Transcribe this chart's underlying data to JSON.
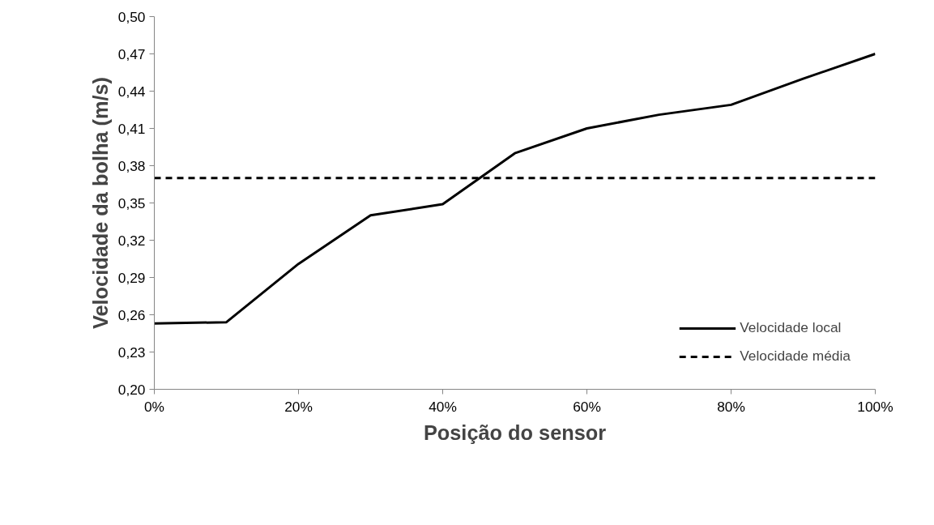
{
  "chart_data": {
    "type": "line",
    "xlabel": "Posição do sensor",
    "ylabel": "Velocidade da bolha (m/s)",
    "x": [
      0,
      10,
      20,
      30,
      40,
      50,
      60,
      70,
      80,
      90,
      100
    ],
    "series": [
      {
        "name": "Velocidade local",
        "color": "#000000",
        "values": [
          0.253,
          0.254,
          0.301,
          0.34,
          0.349,
          0.39,
          0.41,
          0.421,
          0.429,
          0.45,
          0.47
        ]
      }
    ],
    "ref_lines": [
      {
        "axis": "y",
        "value": 0.37,
        "label": "Velocidade média",
        "color": "#000000",
        "line_style": "dashed"
      }
    ],
    "xlim": [
      0,
      100
    ],
    "xticks": [
      {
        "value": 0,
        "label": "0%"
      },
      {
        "value": 20,
        "label": "20%"
      },
      {
        "value": 40,
        "label": "40%"
      },
      {
        "value": 60,
        "label": "60%"
      },
      {
        "value": 80,
        "label": "80%"
      },
      {
        "value": 100,
        "label": "100%"
      }
    ],
    "ylim": [
      0.2,
      0.5
    ],
    "yticks": [
      {
        "value": 0.2,
        "label": "0,20"
      },
      {
        "value": 0.23,
        "label": "0,23"
      },
      {
        "value": 0.26,
        "label": "0,26"
      },
      {
        "value": 0.29,
        "label": "0,29"
      },
      {
        "value": 0.32,
        "label": "0,32"
      },
      {
        "value": 0.35,
        "label": "0,35"
      },
      {
        "value": 0.38,
        "label": "0,38"
      },
      {
        "value": 0.41,
        "label": "0,41"
      },
      {
        "value": 0.44,
        "label": "0,44"
      },
      {
        "value": 0.47,
        "label": "0,47"
      },
      {
        "value": 0.5,
        "label": "0,50"
      }
    ],
    "grid": false,
    "legend": "bottom right",
    "marker": "none",
    "line_style": "solid"
  }
}
